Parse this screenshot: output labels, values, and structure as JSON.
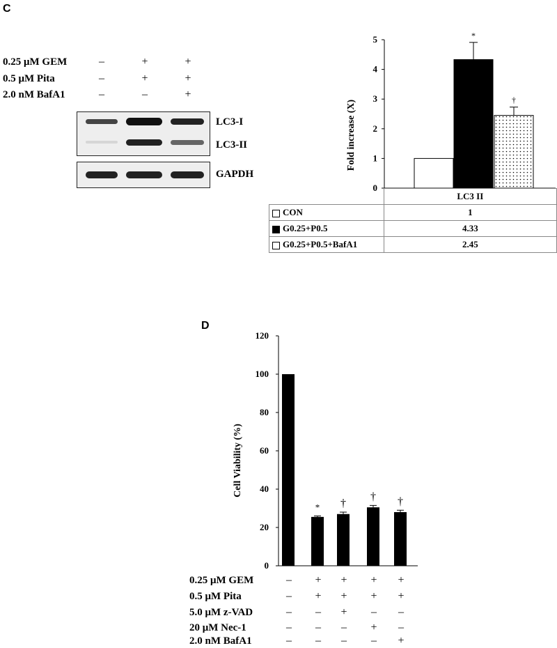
{
  "panel_c": {
    "letter": "C",
    "blot": {
      "conditions": [
        {
          "label": "0.25 μM GEM",
          "signs": [
            "–",
            "+",
            "+"
          ]
        },
        {
          "label": "0.5 μM Pita",
          "signs": [
            "–",
            "+",
            "+"
          ]
        },
        {
          "label": "2.0 nM BafA1",
          "signs": [
            "–",
            "–",
            "+"
          ]
        }
      ],
      "band_labels": {
        "lc3_i": "LC3-I",
        "lc3_ii": "LC3-II",
        "gapdh": "GAPDH"
      }
    },
    "table": {
      "header": "LC3 II",
      "rows": [
        {
          "label": "CON",
          "value": "1",
          "swatch": "#ffffff"
        },
        {
          "label": "G0.25+P0.5",
          "value": "4.33",
          "swatch": "#000000"
        },
        {
          "label": "G0.25+P0.5+BafA1",
          "value": "2.45",
          "swatch": "#ffffff"
        }
      ]
    }
  },
  "panel_d": {
    "letter": "D",
    "conditions": [
      {
        "label": "0.25 μM GEM",
        "signs": [
          "–",
          "+",
          "+",
          "+",
          "+"
        ]
      },
      {
        "label": "0.5 μM Pita",
        "signs": [
          "–",
          "+",
          "+",
          "+",
          "+"
        ]
      },
      {
        "label": "5.0 μM z-VAD",
        "signs": [
          "–",
          "–",
          "+",
          "–",
          "–"
        ]
      },
      {
        "label": "20 μM Nec-1",
        "signs": [
          "–",
          "–",
          "–",
          "+",
          "–"
        ]
      },
      {
        "label": "2.0 nM BafA1",
        "signs": [
          "–",
          "–",
          "–",
          "–",
          "+"
        ]
      }
    ]
  },
  "chart_data": [
    {
      "type": "bar",
      "panel": "C",
      "title": "",
      "xlabel": "LC3 II",
      "ylabel": "Fold increase (X)",
      "ylim": [
        0,
        5
      ],
      "yticks": [
        0,
        1,
        2,
        3,
        4,
        5
      ],
      "grid": false,
      "categories": [
        "CON",
        "G0.25+P0.5",
        "G0.25+P0.5+BafA1"
      ],
      "values": [
        1,
        4.33,
        2.45
      ],
      "errors": [
        0,
        0.58,
        0.28
      ],
      "fills": [
        "white",
        "black",
        "dotted"
      ],
      "annotations": [
        "",
        "*",
        "†"
      ]
    },
    {
      "type": "bar",
      "panel": "D",
      "title": "",
      "xlabel": "",
      "ylabel": "Cell Viability (%)",
      "ylim": [
        0,
        120
      ],
      "yticks": [
        0,
        20,
        40,
        60,
        80,
        100,
        120
      ],
      "grid": false,
      "values": [
        100,
        25.5,
        27,
        30.5,
        28
      ],
      "errors": [
        0,
        0.5,
        1,
        1,
        1
      ],
      "color": "#000000",
      "annotations": [
        "",
        "*",
        "†",
        "†",
        "†"
      ]
    }
  ]
}
